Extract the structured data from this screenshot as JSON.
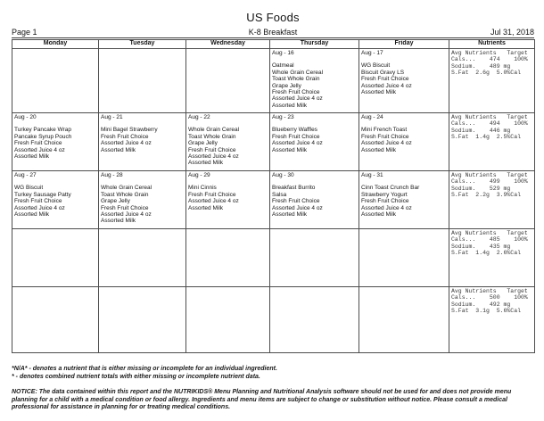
{
  "report": {
    "title": "US Foods",
    "page_label": "Page 1",
    "meal_label": "K-8 Breakfast",
    "date_label": "Jul 31, 2018"
  },
  "table": {
    "headers": [
      "Monday",
      "Tuesday",
      "Wednesday",
      "Thursday",
      "Friday",
      "Nutrients"
    ],
    "rows": [
      {
        "days": [
          {
            "date": "",
            "items": []
          },
          {
            "date": "",
            "items": []
          },
          {
            "date": "",
            "items": []
          },
          {
            "date": "Aug - 16",
            "items": [
              "Oatmeal",
              "Whole Grain Cereal",
              "Toast Whole Grain",
              "Grape Jelly",
              "Fresh Fruit Choice",
              "Assorted Juice 4 oz",
              "Assorted Milk"
            ]
          },
          {
            "date": "Aug - 17",
            "items": [
              "WG Biscuit",
              "Biscuit Gravy LS",
              "Fresh Fruit Choice",
              "Assorted Juice 4 oz",
              "Assorted Milk"
            ]
          }
        ],
        "nutrients": [
          "Avg Nutrients   Target",
          "Cals...    474    100%",
          "Sodium.    489 mg",
          "S.Fat  2.6g  5.0%Cal"
        ]
      },
      {
        "days": [
          {
            "date": "Aug - 20",
            "items": [
              "Turkey Pancake Wrap",
              "Pancake Syrup Pouch",
              "Fresh Fruit Choice",
              "Assorted Juice 4 oz",
              "Assorted Milk"
            ]
          },
          {
            "date": "Aug - 21",
            "items": [
              "Mini Bagel Strawberry",
              "Fresh Fruit Choice",
              "Assorted Juice 4 oz",
              "Assorted Milk"
            ]
          },
          {
            "date": "Aug - 22",
            "items": [
              "Whole Grain Cereal",
              "Toast Whole Grain",
              "Grape Jelly",
              "Fresh Fruit Choice",
              "Assorted Juice 4 oz",
              "Assorted Milk"
            ]
          },
          {
            "date": "Aug - 23",
            "items": [
              "Blueberry Waffles",
              "Fresh Fruit Choice",
              "Assorted Juice 4 oz",
              "Assorted Milk"
            ]
          },
          {
            "date": "Aug - 24",
            "items": [
              "Mini French Toast",
              "Fresh Fruit Choice",
              "Assorted Juice 4 oz",
              "Assorted Milk"
            ]
          }
        ],
        "nutrients": [
          "Avg Nutrients   Target",
          "Cals...    494    100%",
          "Sodium.    446 mg",
          "S.Fat  1.4g  2.5%Cal"
        ]
      },
      {
        "days": [
          {
            "date": "Aug - 27",
            "items": [
              "WG Biscuit",
              "Turkey Sausage Patty",
              "Fresh Fruit Choice",
              "Assorted Juice 4 oz",
              "Assorted Milk"
            ]
          },
          {
            "date": "Aug - 28",
            "items": [
              "Whole Grain Cereal",
              "Toast Whole Grain",
              "Grape Jelly",
              "Fresh Fruit Choice",
              "Assorted Juice 4 oz",
              "Assorted Milk"
            ]
          },
          {
            "date": "Aug - 29",
            "items": [
              "Mini Cinnis",
              "Fresh Fruit Choice",
              "Assorted Juice 4 oz",
              "Assorted Milk"
            ]
          },
          {
            "date": "Aug - 30",
            "items": [
              "Breakfast Burrito",
              "Salsa",
              "Fresh Fruit Choice",
              "Assorted Juice 4 oz",
              "Assorted Milk"
            ]
          },
          {
            "date": "Aug - 31",
            "items": [
              "Cinn Toast Crunch Bar",
              "Strawberry Yogurt",
              "Fresh Fruit Choice",
              "Assorted Juice 4 oz",
              "Assorted Milk"
            ]
          }
        ],
        "nutrients": [
          "Avg Nutrients   Target",
          "Cals...    499    100%",
          "Sodium.    529 mg",
          "S.Fat  2.2g  3.9%Cal"
        ]
      },
      {
        "days": [
          {
            "date": "",
            "items": []
          },
          {
            "date": "",
            "items": []
          },
          {
            "date": "",
            "items": []
          },
          {
            "date": "",
            "items": []
          },
          {
            "date": "",
            "items": []
          }
        ],
        "nutrients": [
          "Avg Nutrients   Target",
          "Cals...    485    100%",
          "Sodium.    435 mg",
          "S.Fat  1.4g  2.6%Cal"
        ]
      },
      {
        "days": [
          {
            "date": "",
            "items": []
          },
          {
            "date": "",
            "items": []
          },
          {
            "date": "",
            "items": []
          },
          {
            "date": "",
            "items": []
          },
          {
            "date": "",
            "items": []
          }
        ],
        "nutrients": [
          "Avg Nutrients   Target",
          "Cals...    500    100%",
          "Sodium.    492 mg",
          "S.Fat  3.1g  5.6%Cal"
        ]
      }
    ]
  },
  "footnotes": {
    "line1": "*N/A* - denotes a nutrient that is either missing or incomplete for an individual ingredient.",
    "line2": "* - denotes combined nutrient totals with either missing or incomplete nutrient data.",
    "notice": "NOTICE:  The data contained within this report and the NUTRIKIDS® Menu Planning and Nutritional Analysis software should not be used for and does not provide menu planning for a child with a  medical condition or food allergy.  Ingredients and menu items are subject to change or substitution without notice.  Please consult a medical professional for assistance in planning for or treating medical conditions."
  }
}
